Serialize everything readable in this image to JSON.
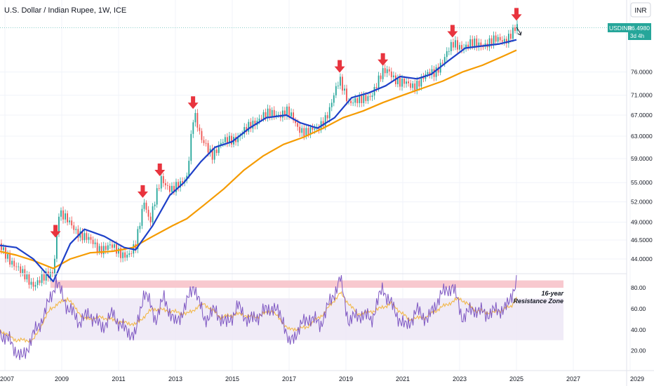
{
  "header": {
    "title": "U.S. Dollar / Indian Rupee, 1W, ICE"
  },
  "currency_label": "INR",
  "price_badge": {
    "symbol": "USDINR",
    "price": "86.4980",
    "countdown": "3d 4h"
  },
  "annotation": {
    "line1": "16-year",
    "line2": "Resistance Zone"
  },
  "colors": {
    "price_up": "#26a69a",
    "price_down": "#ef5350",
    "ma_fast": "#1e40c8",
    "ma_slow": "#f59b00",
    "rsi": "#7e57c2",
    "rsi_signal": "#f2b84b",
    "arrow": "#e8343e",
    "resistance_zone": "#f8c9cf",
    "rsi_band": "#ede7f6",
    "badge_bg": "#26a69a"
  },
  "chart_data": [
    {
      "type": "line",
      "title": "U.S. Dollar / Indian Rupee, 1W, ICE",
      "x_axis": {
        "ticks": [
          "2007",
          "2009",
          "2011",
          "2013",
          "2015",
          "2017",
          "2019",
          "2021",
          "2023",
          "2025",
          "2027",
          "2029"
        ]
      },
      "y_axis": {
        "scale": "log",
        "ticks": [
          "76.0000",
          "71.0000",
          "67.0000",
          "63.0000",
          "59.0000",
          "55.0000",
          "52.0000",
          "49.0000",
          "46.5000",
          "44.0000"
        ]
      },
      "series": [
        {
          "role": "price",
          "x": [
            2006.8,
            2007.2,
            2007.6,
            2008.0,
            2008.4,
            2008.7,
            2008.9,
            2009.2,
            2009.5,
            2009.9,
            2010.3,
            2010.7,
            2011.0,
            2011.4,
            2011.6,
            2011.9,
            2012.1,
            2012.5,
            2012.9,
            2013.2,
            2013.4,
            2013.65,
            2013.9,
            2014.3,
            2014.6,
            2015.0,
            2015.5,
            2016.0,
            2016.5,
            2016.9,
            2017.3,
            2017.7,
            2018.0,
            2018.4,
            2018.78,
            2019.1,
            2019.5,
            2019.9,
            2020.3,
            2020.5,
            2020.9,
            2021.3,
            2021.7,
            2022.1,
            2022.5,
            2022.8,
            2023.2,
            2023.7,
            2024.2,
            2024.6,
            2024.9,
            2025.05
          ],
          "y": [
            45.5,
            44.0,
            42.0,
            41.0,
            41.5,
            42.5,
            50.5,
            49.0,
            48.0,
            46.5,
            45.5,
            45.5,
            45.0,
            44.5,
            45.5,
            52.5,
            49.0,
            55.5,
            54.0,
            54.5,
            56.0,
            68.0,
            62.0,
            60.0,
            61.5,
            62.5,
            64.0,
            67.0,
            67.0,
            68.0,
            64.5,
            64.0,
            64.0,
            68.0,
            74.0,
            70.0,
            69.5,
            71.5,
            75.5,
            76.5,
            73.5,
            73.0,
            74.5,
            76.0,
            79.5,
            82.5,
            82.0,
            82.5,
            83.0,
            83.8,
            85.5,
            86.5
          ]
        },
        {
          "role": "moving_average_fast",
          "x": [
            2006.8,
            2007.4,
            2008.0,
            2008.7,
            2009.3,
            2009.8,
            2010.5,
            2011.2,
            2011.6,
            2012.2,
            2012.8,
            2013.3,
            2013.9,
            2014.4,
            2015.0,
            2015.6,
            2016.2,
            2016.9,
            2017.4,
            2018.0,
            2018.6,
            2019.2,
            2019.8,
            2020.4,
            2020.9,
            2021.5,
            2022.0,
            2022.6,
            2023.2,
            2023.8,
            2024.4,
            2025.0
          ],
          "y": [
            45.8,
            45.5,
            44.0,
            41.2,
            46.0,
            48.0,
            47.0,
            45.5,
            45.2,
            48.5,
            53.0,
            55.0,
            58.5,
            61.0,
            62.0,
            64.5,
            66.5,
            67.0,
            65.5,
            64.5,
            66.5,
            70.5,
            71.5,
            73.0,
            75.0,
            74.5,
            75.5,
            78.5,
            81.5,
            82.0,
            82.5,
            83.5
          ]
        },
        {
          "role": "moving_average_slow",
          "x": [
            2006.8,
            2007.4,
            2008.0,
            2008.7,
            2009.3,
            2010.0,
            2010.8,
            2011.5,
            2012.2,
            2012.9,
            2013.4,
            2014.0,
            2014.7,
            2015.4,
            2016.1,
            2016.8,
            2017.5,
            2018.2,
            2018.9,
            2019.6,
            2020.3,
            2021.0,
            2021.7,
            2022.4,
            2023.1,
            2023.8,
            2024.5,
            2025.0
          ],
          "y": [
            45.0,
            44.5,
            43.8,
            42.8,
            44.0,
            44.8,
            45.0,
            45.5,
            47.0,
            48.5,
            49.5,
            51.5,
            54.0,
            57.0,
            59.5,
            61.5,
            62.8,
            64.5,
            66.5,
            67.8,
            69.5,
            71.0,
            72.5,
            74.0,
            76.0,
            77.5,
            79.5,
            81.0
          ]
        }
      ],
      "markers": {
        "type": "arrow_down",
        "x": [
          2008.78,
          2011.85,
          2012.45,
          2013.62,
          2018.78,
          2020.3,
          2022.75,
          2025.0
        ]
      }
    },
    {
      "type": "line",
      "title": "",
      "y_axis": {
        "ticks": [
          "80.00",
          "60.00",
          "40.00",
          "20.00"
        ]
      },
      "bands": [
        {
          "role": "resistance_zone",
          "ymin": 80,
          "ymax": 87
        },
        {
          "role": "rsi_range",
          "ymin": 30,
          "ymax": 70
        }
      ],
      "series": [
        {
          "role": "rsi",
          "x": [
            2006.8,
            2007.2,
            2007.6,
            2008.0,
            2008.4,
            2008.8,
            2009.2,
            2009.6,
            2010.0,
            2010.4,
            2010.8,
            2011.2,
            2011.6,
            2011.9,
            2012.3,
            2012.6,
            2013.0,
            2013.4,
            2013.65,
            2014.0,
            2014.4,
            2014.8,
            2015.2,
            2015.6,
            2016.0,
            2016.4,
            2016.8,
            2017.0,
            2017.3,
            2017.7,
            2018.1,
            2018.5,
            2018.8,
            2019.1,
            2019.5,
            2019.9,
            2020.3,
            2020.7,
            2021.1,
            2021.5,
            2021.9,
            2022.3,
            2022.75,
            2023.1,
            2023.5,
            2023.9,
            2024.3,
            2024.7,
            2025.0
          ],
          "y": [
            38,
            28,
            12,
            35,
            55,
            86,
            62,
            48,
            55,
            42,
            55,
            40,
            35,
            78,
            50,
            70,
            45,
            65,
            84,
            50,
            58,
            45,
            62,
            48,
            55,
            62,
            50,
            25,
            40,
            52,
            45,
            70,
            88,
            48,
            55,
            50,
            80,
            58,
            42,
            58,
            50,
            72,
            82,
            52,
            60,
            55,
            58,
            62,
            88
          ]
        },
        {
          "role": "rsi_signal",
          "x": [
            2006.8,
            2007.4,
            2008.0,
            2008.6,
            2009.2,
            2009.8,
            2010.4,
            2011.0,
            2011.6,
            2012.2,
            2012.8,
            2013.4,
            2014.0,
            2014.6,
            2015.2,
            2015.8,
            2016.4,
            2017.0,
            2017.6,
            2018.2,
            2018.8,
            2019.4,
            2020.0,
            2020.6,
            2021.2,
            2021.8,
            2022.4,
            2023.0,
            2023.6,
            2024.2,
            2024.8,
            2025.0
          ],
          "y": [
            40,
            30,
            30,
            60,
            70,
            50,
            52,
            48,
            45,
            60,
            58,
            55,
            65,
            52,
            55,
            52,
            58,
            40,
            42,
            55,
            75,
            55,
            58,
            65,
            50,
            52,
            62,
            70,
            58,
            56,
            62,
            70
          ]
        }
      ]
    }
  ]
}
